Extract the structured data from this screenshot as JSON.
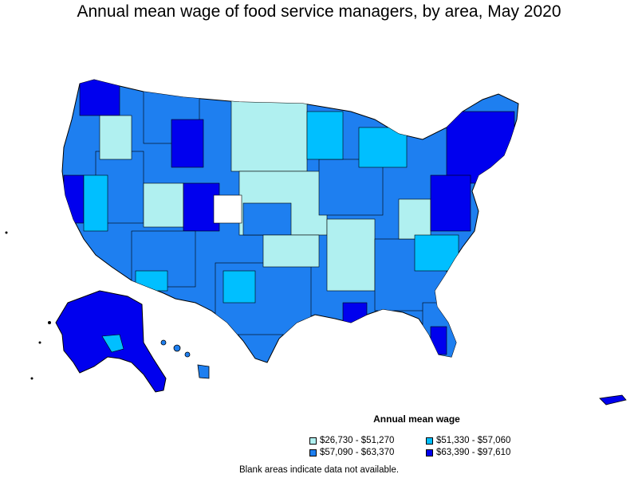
{
  "title": "Annual mean wage of food service managers, by area, May 2020",
  "legend": {
    "title": "Annual mean wage",
    "items": [
      {
        "label": "$26,730 - $51,270",
        "color": "#b0f0f0"
      },
      {
        "label": "$51,330 - $57,060",
        "color": "#00bfff"
      },
      {
        "label": "$57,090 - $63,370",
        "color": "#1e7ff0"
      },
      {
        "label": "$63,390 - $97,610",
        "color": "#0000ee"
      }
    ]
  },
  "note": "Blank areas indicate data not available.",
  "colors": {
    "low": "#b0f0f0",
    "mid_low": "#00bfff",
    "mid_high": "#1e7ff0",
    "high": "#0000ee",
    "no_data": "#ffffff",
    "border": "#000000"
  }
}
